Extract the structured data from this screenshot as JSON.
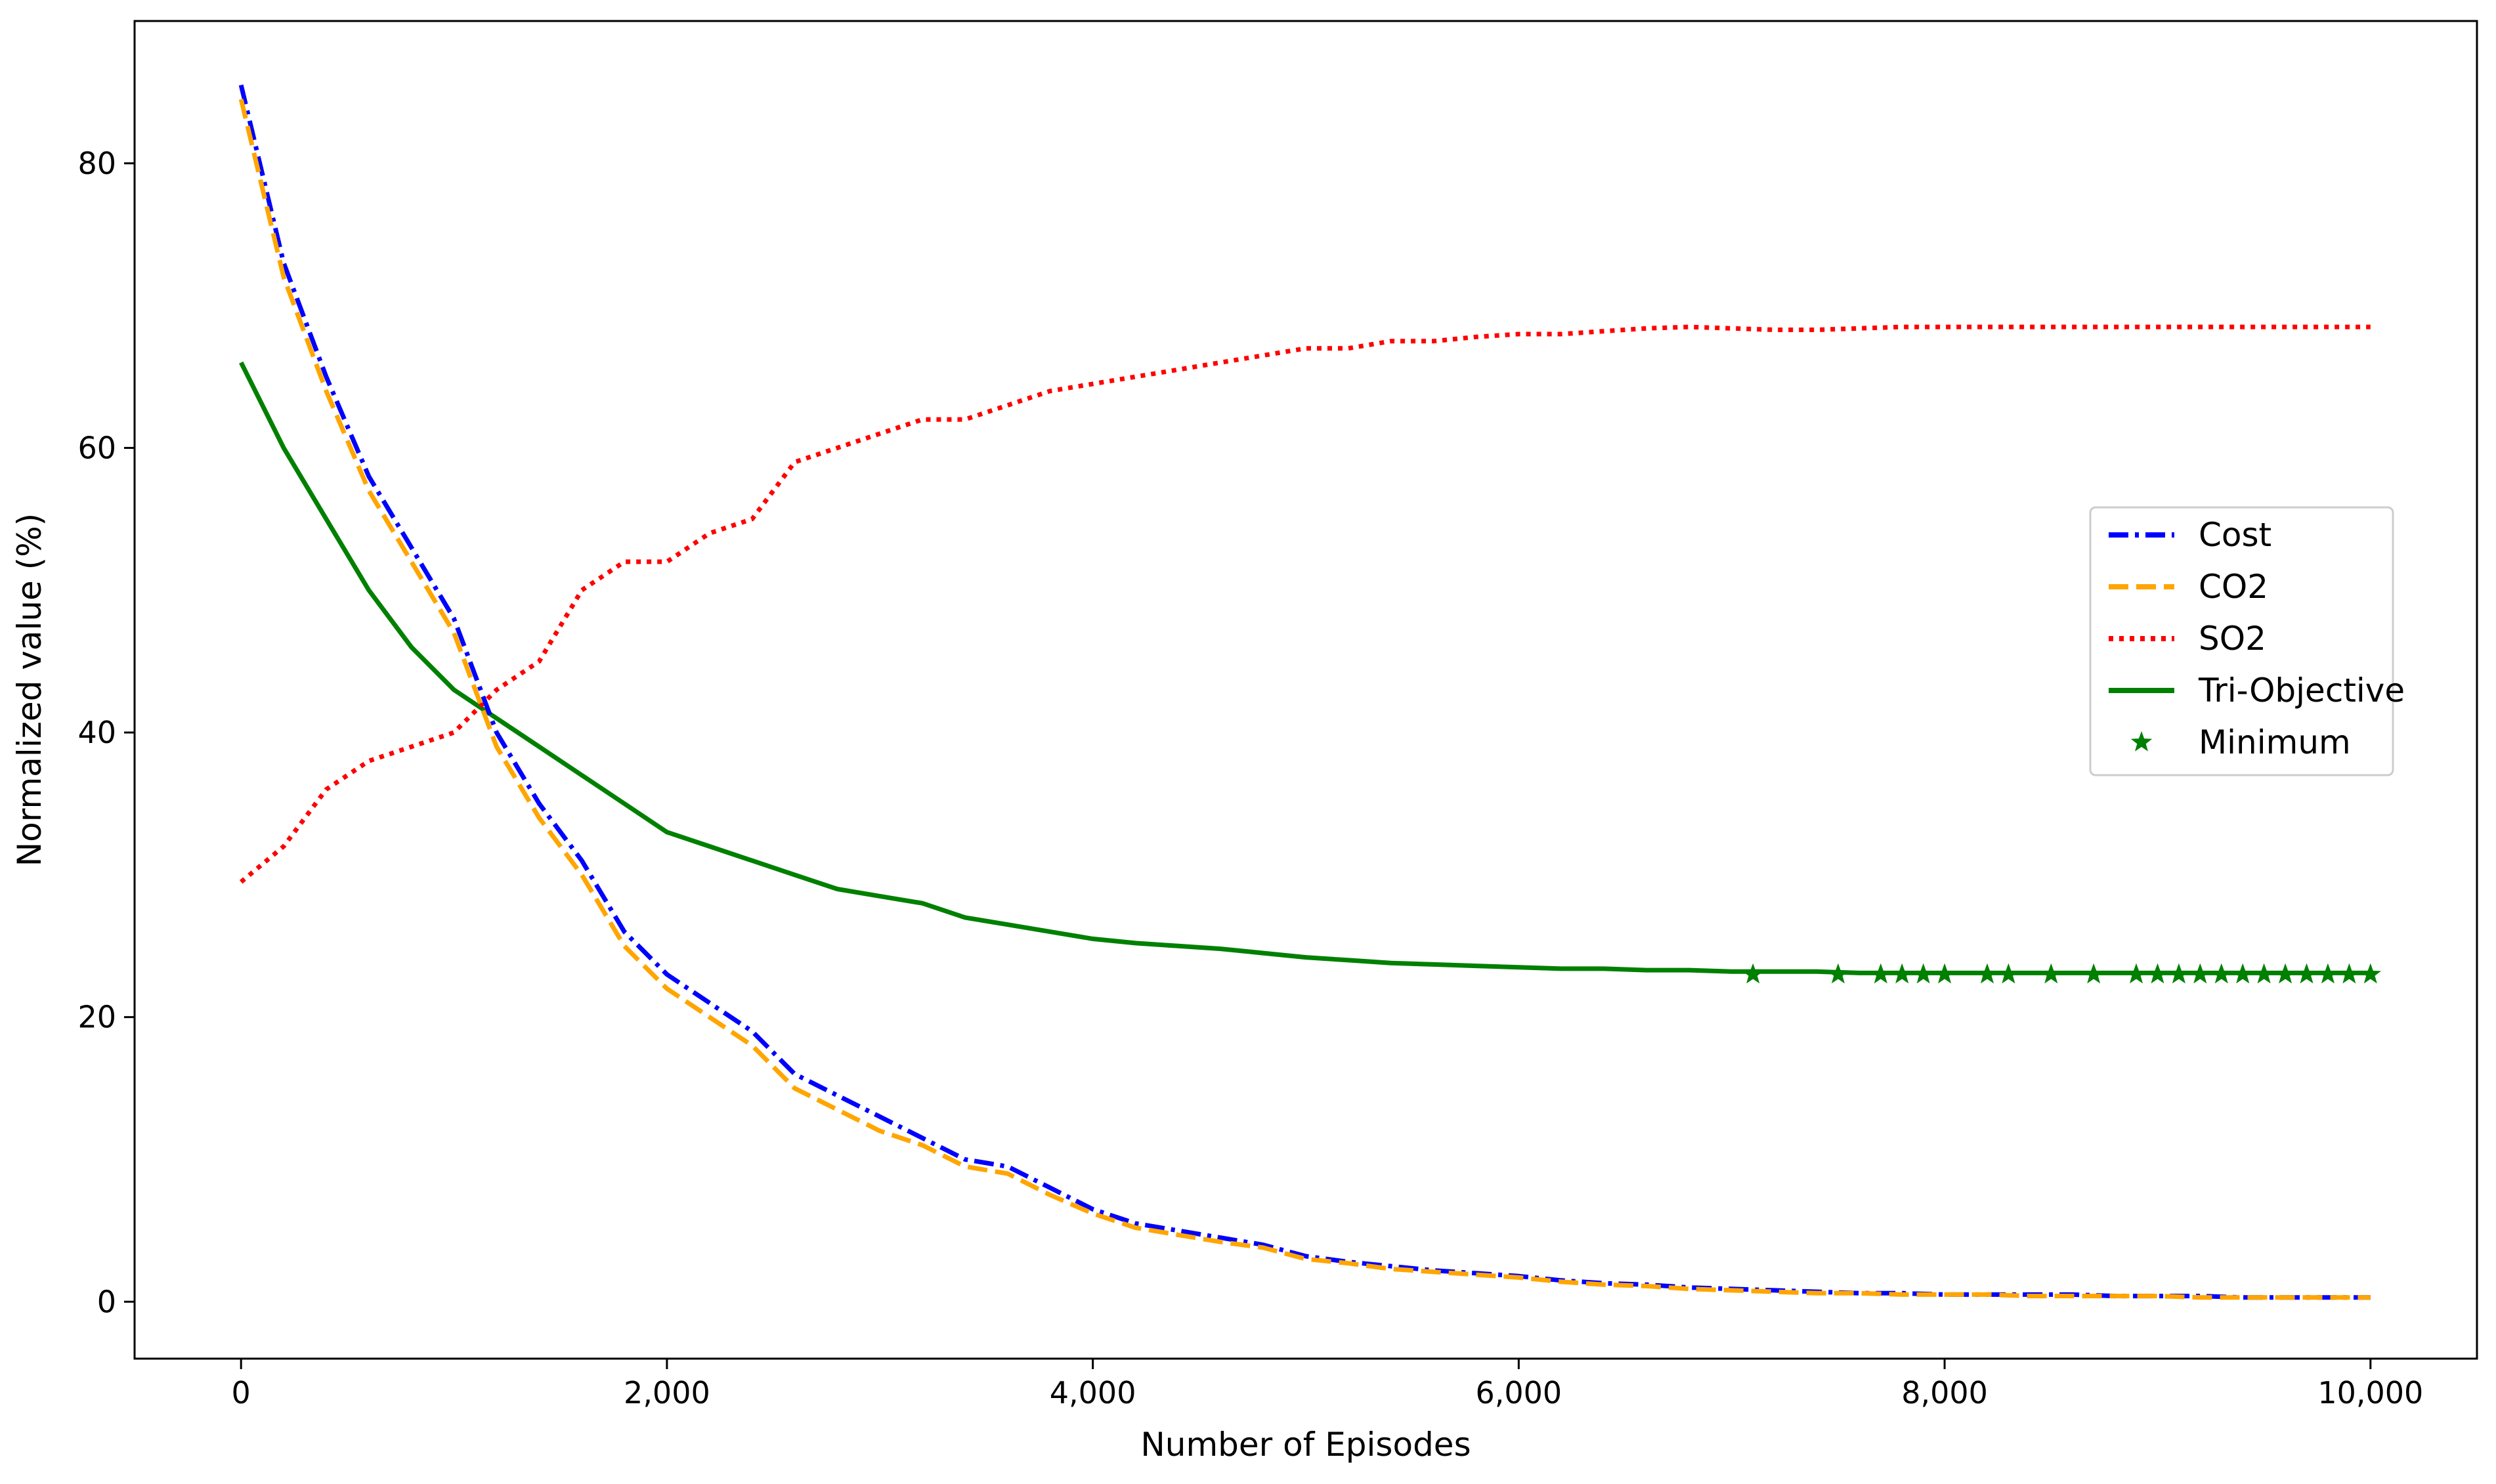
{
  "chart_data": {
    "type": "line",
    "title": "",
    "xlabel": "Number of Episodes",
    "ylabel": "Normalized value (%)",
    "xlim": [
      -500,
      10500
    ],
    "ylim": [
      -4,
      90
    ],
    "x_ticks": [
      0,
      2000,
      4000,
      6000,
      8000,
      10000
    ],
    "x_tick_labels": [
      "0",
      "2,000",
      "4,000",
      "6,000",
      "8,000",
      "10,000"
    ],
    "y_ticks": [
      0,
      20,
      40,
      60,
      80
    ],
    "y_tick_labels": [
      "0",
      "20",
      "40",
      "60",
      "80"
    ],
    "grid": false,
    "legend_position": "center-right",
    "x": [
      0,
      200,
      400,
      600,
      800,
      1000,
      1200,
      1400,
      1600,
      1800,
      2000,
      2200,
      2400,
      2600,
      2800,
      3000,
      3200,
      3400,
      3600,
      3800,
      4000,
      4200,
      4400,
      4600,
      4800,
      5000,
      5200,
      5400,
      5600,
      5800,
      6000,
      6200,
      6400,
      6600,
      6800,
      7000,
      7200,
      7400,
      7600,
      7800,
      8000,
      8200,
      8400,
      8600,
      8800,
      9000,
      9200,
      9400,
      9600,
      9800,
      10000
    ],
    "series": [
      {
        "name": "Cost",
        "color": "#0000ff",
        "style": "dashdot",
        "values": [
          85.5,
          73,
          65,
          58,
          53,
          48,
          40,
          35,
          31,
          26,
          23,
          21,
          19,
          16,
          14.5,
          13,
          11.5,
          10,
          9.5,
          8,
          6.5,
          5.5,
          5,
          4.5,
          4,
          3.2,
          2.8,
          2.5,
          2.2,
          2,
          1.8,
          1.5,
          1.3,
          1.2,
          1,
          0.9,
          0.8,
          0.7,
          0.6,
          0.6,
          0.5,
          0.5,
          0.5,
          0.5,
          0.4,
          0.4,
          0.4,
          0.3,
          0.3,
          0.3,
          0.3
        ]
      },
      {
        "name": "CO2",
        "color": "#ffa500",
        "style": "dashed",
        "values": [
          84.5,
          72,
          64,
          57,
          52,
          47,
          39,
          34,
          30,
          25,
          22,
          20,
          18,
          15,
          13.5,
          12,
          11,
          9.5,
          9,
          7.5,
          6.2,
          5.2,
          4.7,
          4.2,
          3.8,
          3,
          2.7,
          2.3,
          2.1,
          1.9,
          1.7,
          1.4,
          1.2,
          1.1,
          0.9,
          0.8,
          0.7,
          0.6,
          0.6,
          0.5,
          0.5,
          0.5,
          0.4,
          0.4,
          0.4,
          0.4,
          0.3,
          0.3,
          0.3,
          0.3,
          0.3
        ]
      },
      {
        "name": "SO2",
        "color": "#ff0000",
        "style": "dotted",
        "values": [
          29.5,
          32,
          36,
          38,
          39,
          40,
          43,
          45,
          50,
          52,
          52,
          54,
          55,
          59,
          60,
          61,
          62,
          62,
          63,
          64,
          64.5,
          65,
          65.5,
          66,
          66.5,
          67,
          67,
          67.5,
          67.5,
          67.8,
          68,
          68,
          68.2,
          68.4,
          68.5,
          68.4,
          68.3,
          68.3,
          68.4,
          68.5,
          68.5,
          68.5,
          68.5,
          68.5,
          68.5,
          68.5,
          68.5,
          68.5,
          68.5,
          68.5,
          68.5
        ]
      },
      {
        "name": "Tri-Objective",
        "color": "#008000",
        "style": "solid",
        "values": [
          66,
          60,
          55,
          50,
          46,
          43,
          41,
          39,
          37,
          35,
          33,
          32,
          31,
          30,
          29,
          28.5,
          28,
          27,
          26.5,
          26,
          25.5,
          25.2,
          25,
          24.8,
          24.5,
          24.2,
          24,
          23.8,
          23.7,
          23.6,
          23.5,
          23.4,
          23.4,
          23.3,
          23.3,
          23.2,
          23.2,
          23.2,
          23.1,
          23.1,
          23.1,
          23.1,
          23.1,
          23.1,
          23.1,
          23.1,
          23.1,
          23.1,
          23.1,
          23.1,
          23.1
        ]
      }
    ],
    "minimum_markers": {
      "name": "Minimum",
      "color": "#008000",
      "marker": "star",
      "x": [
        7100,
        7500,
        7700,
        7800,
        7900,
        8000,
        8200,
        8300,
        8500,
        8700,
        8900,
        9000,
        9100,
        9200,
        9300,
        9400,
        9500,
        9600,
        9700,
        9800,
        9900,
        10000
      ],
      "y": [
        23,
        23,
        23,
        23,
        23,
        23,
        23,
        23,
        23,
        23,
        23,
        23,
        23,
        23,
        23,
        23,
        23,
        23,
        23,
        23,
        23,
        23
      ]
    },
    "legend": [
      "Cost",
      "CO2",
      "SO2",
      "Tri-Objective",
      "Minimum"
    ]
  }
}
